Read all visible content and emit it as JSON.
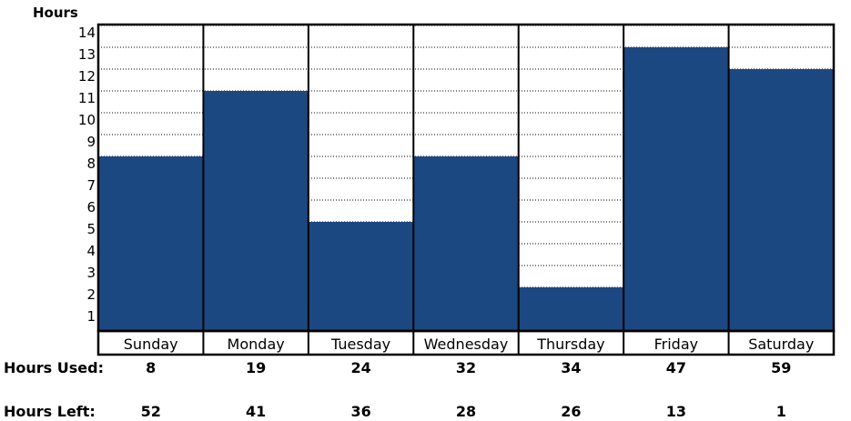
{
  "chart_data": {
    "type": "bar",
    "ylabel": "Hours",
    "ylim": [
      0,
      14
    ],
    "yticks": [
      1,
      2,
      3,
      4,
      5,
      6,
      7,
      8,
      9,
      10,
      11,
      12,
      13,
      14
    ],
    "categories": [
      "Sunday",
      "Monday",
      "Tuesday",
      "Wednesday",
      "Thursday",
      "Friday",
      "Saturday"
    ],
    "values": [
      8,
      11,
      5,
      8,
      2,
      13,
      12
    ],
    "grid": "horizontal-dotted",
    "bar_color": "#1c4882"
  },
  "table": {
    "rows": [
      {
        "label": "Hours Used:",
        "values": [
          "8",
          "19",
          "24",
          "32",
          "34",
          "47",
          "59"
        ]
      },
      {
        "label": "Hours Left:",
        "values": [
          "52",
          "41",
          "36",
          "28",
          "26",
          "13",
          "1"
        ]
      }
    ]
  }
}
